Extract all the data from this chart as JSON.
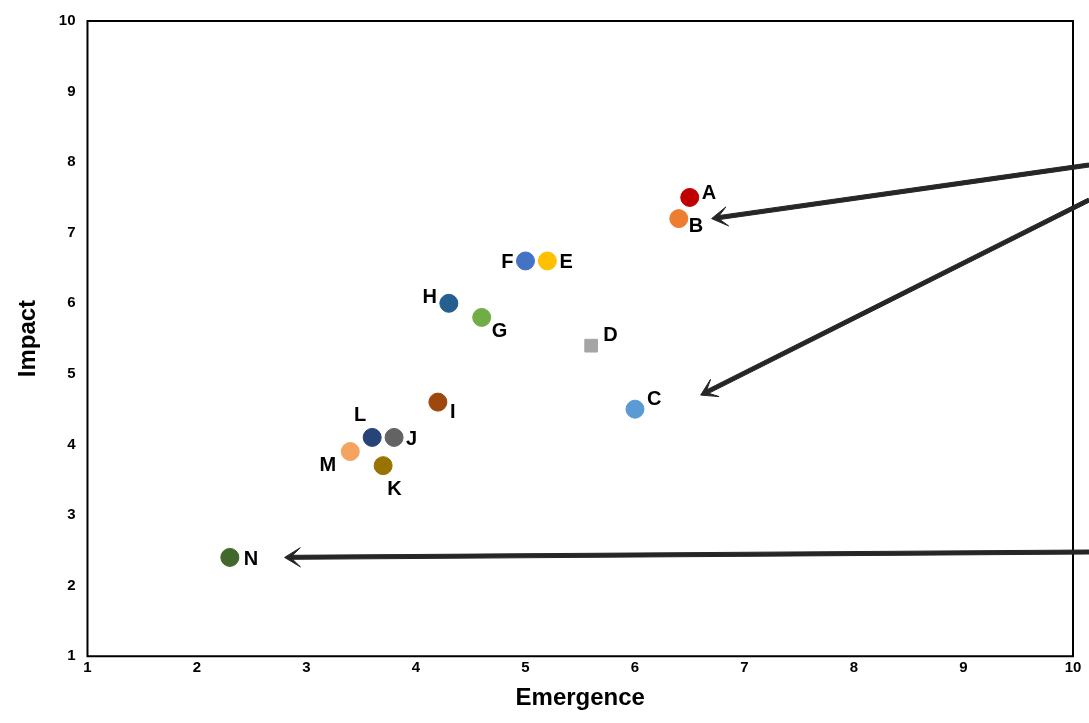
{
  "chart_data": {
    "type": "scatter",
    "xlabel": "Emergence",
    "ylabel": "Impact",
    "xlim": [
      1,
      10
    ],
    "ylim": [
      1,
      10
    ],
    "xticks": [
      1,
      2,
      3,
      4,
      5,
      6,
      7,
      8,
      9,
      10
    ],
    "yticks": [
      1,
      2,
      3,
      4,
      5,
      6,
      7,
      8,
      9,
      10
    ],
    "grid": false,
    "legend": false,
    "marker": "circle",
    "series": [
      {
        "name": "A",
        "color": "#c00000",
        "x": [
          6.5
        ],
        "values": [
          7.5
        ]
      },
      {
        "name": "B",
        "color": "#ed7d31",
        "x": [
          6.4
        ],
        "values": [
          7.2
        ]
      },
      {
        "name": "C",
        "color": "#5b9bd5",
        "x": [
          6.0
        ],
        "values": [
          4.5
        ]
      },
      {
        "name": "D",
        "color": "#a5a5a5",
        "x": [
          5.6
        ],
        "values": [
          5.4
        ],
        "marker": "square"
      },
      {
        "name": "E",
        "color": "#ffc000",
        "x": [
          5.2
        ],
        "values": [
          6.6
        ]
      },
      {
        "name": "F",
        "color": "#4472c4",
        "x": [
          5.0
        ],
        "values": [
          6.6
        ]
      },
      {
        "name": "G",
        "color": "#70ad47",
        "x": [
          4.6
        ],
        "values": [
          5.8
        ]
      },
      {
        "name": "H",
        "color": "#255e91",
        "x": [
          4.3
        ],
        "values": [
          6.0
        ]
      },
      {
        "name": "I",
        "color": "#9e480e",
        "x": [
          4.2
        ],
        "values": [
          4.6
        ]
      },
      {
        "name": "J",
        "color": "#636363",
        "x": [
          3.8
        ],
        "values": [
          4.1
        ]
      },
      {
        "name": "K",
        "color": "#997300",
        "x": [
          3.7
        ],
        "values": [
          3.7
        ]
      },
      {
        "name": "L",
        "color": "#264478",
        "x": [
          3.6
        ],
        "values": [
          4.1
        ]
      },
      {
        "name": "M",
        "color": "#f4a460",
        "x": [
          3.4
        ],
        "values": [
          3.9
        ]
      },
      {
        "name": "N",
        "color": "#43682b",
        "x": [
          2.3
        ],
        "values": [
          2.4
        ]
      }
    ]
  }
}
